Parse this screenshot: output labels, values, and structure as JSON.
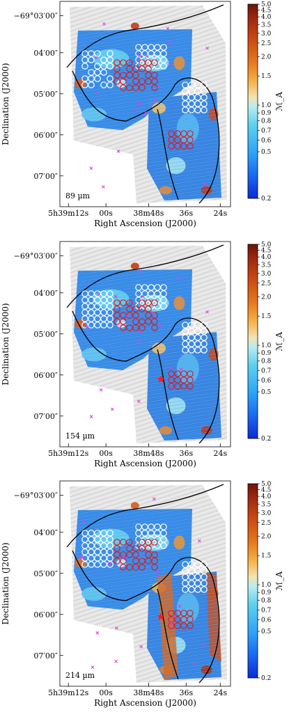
{
  "figure": {
    "colorbar": {
      "label": "ℳ_A",
      "ticks": [
        "5.0",
        "4.5",
        "4.0",
        "3.5",
        "3.0",
        "2.5",
        "2.0",
        "1.5",
        "1.0",
        "0.9",
        "0.8",
        "0.7",
        "0.6",
        "0.5",
        "0.2"
      ],
      "colors": [
        "#0a2bd6",
        "#1a6af0",
        "#2fa6f5",
        "#5fd2ee",
        "#b9ecf0",
        "#f4e3b2",
        "#f4b44a",
        "#e6781e",
        "#c94a12",
        "#a02a10",
        "#6e1306"
      ]
    },
    "panels": [
      {
        "id": "89um",
        "wavelength_label": "89 µm"
      },
      {
        "id": "154um",
        "wavelength_label": "154 µm"
      },
      {
        "id": "214um",
        "wavelength_label": "214 µm"
      }
    ],
    "axes": {
      "ylabel": "Declination (J2000)",
      "xlabel": "Right Ascension (J2000)",
      "yticks": [
        "−69°03′00″",
        "04′00″",
        "05′00″",
        "06′00″",
        "07′00″"
      ],
      "xticks": [
        "5h39m12s",
        "00s",
        "38m48s",
        "36s",
        "24s"
      ]
    },
    "marker_colors": {
      "white_circles": "#ffffff",
      "red_circles": "#d3202a",
      "magenta_crosses": "#e040e0",
      "star": "#ff1a1a",
      "contour": "#000000"
    }
  }
}
